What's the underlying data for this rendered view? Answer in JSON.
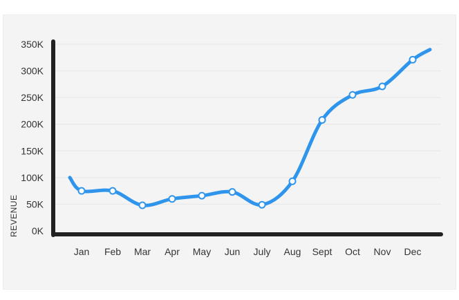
{
  "chart_data": {
    "type": "line",
    "title": "",
    "xlabel": "",
    "ylabel": "REVENUE",
    "categories": [
      "Jan",
      "Feb",
      "Mar",
      "Apr",
      "May",
      "Jun",
      "July",
      "Aug",
      "Sept",
      "Oct",
      "Nov",
      "Dec"
    ],
    "series": [
      {
        "values": [
          75000,
          75000,
          48000,
          60000,
          66000,
          73000,
          49000,
          93000,
          208000,
          255000,
          271000,
          321000
        ]
      }
    ],
    "line_start": 100000,
    "line_end": 340000,
    "y_ticks": [
      "0K",
      "50K",
      "100K",
      "150K",
      "200K",
      "250K",
      "300K",
      "350K"
    ],
    "ylim": [
      0,
      350000
    ],
    "grid": true,
    "legend": "none",
    "colors": {
      "line": "#2f95ec",
      "axis": "#222222",
      "grid": "#e6e6e6"
    }
  }
}
